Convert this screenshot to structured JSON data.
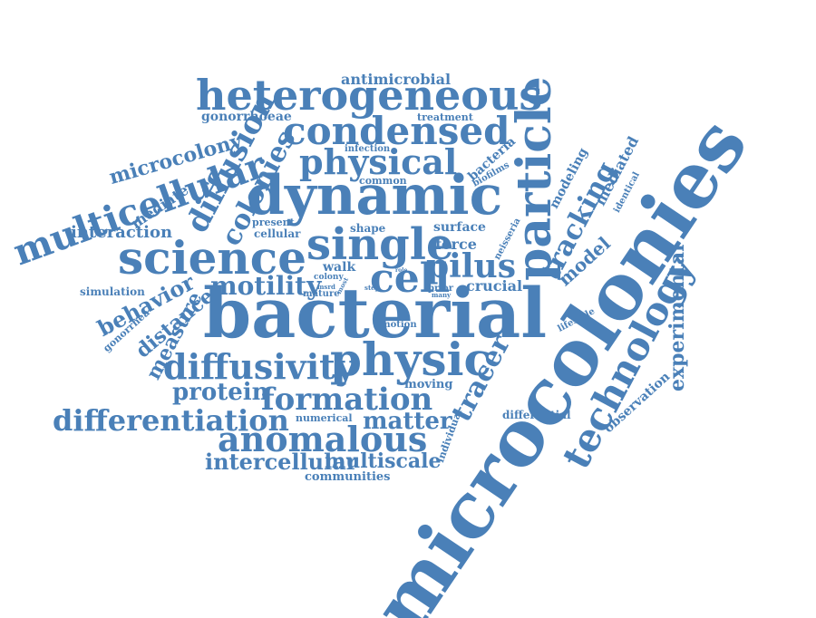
{
  "color": "#4a80b8",
  "words": [
    "microcolonies",
    "bacterial",
    "dynamic",
    "particle",
    "single",
    "science",
    "heterogeneous",
    "physic",
    "condensed",
    "cell",
    "physical",
    "multicellular",
    "technology",
    "diffusivity",
    "anomalous",
    "formation",
    "differentiation",
    "diffusion",
    "colonies",
    "pilus",
    "experimental",
    "tracking",
    "motility",
    "tracer",
    "protein",
    "intercellular",
    "multiscale",
    "microcolony",
    "behavior",
    "measure",
    "distance",
    "matter",
    "interaction",
    "model",
    "observation",
    "mediated",
    "modeling",
    "crucial",
    "force",
    "surface",
    "walk",
    "differential",
    "antimicrobial",
    "gonorrhoeae",
    "treatment",
    "mediate",
    "bacteria",
    "simulation",
    "communities",
    "individual",
    "gonorrhea",
    "moving",
    "numerical",
    "neisseria",
    "identical",
    "biofilms",
    "common",
    "infection",
    "present",
    "cellular",
    "shape",
    "lifestyle",
    "motion",
    "mature",
    "colony",
    "prior",
    "msrd",
    "many",
    "most",
    "step",
    "role"
  ]
}
